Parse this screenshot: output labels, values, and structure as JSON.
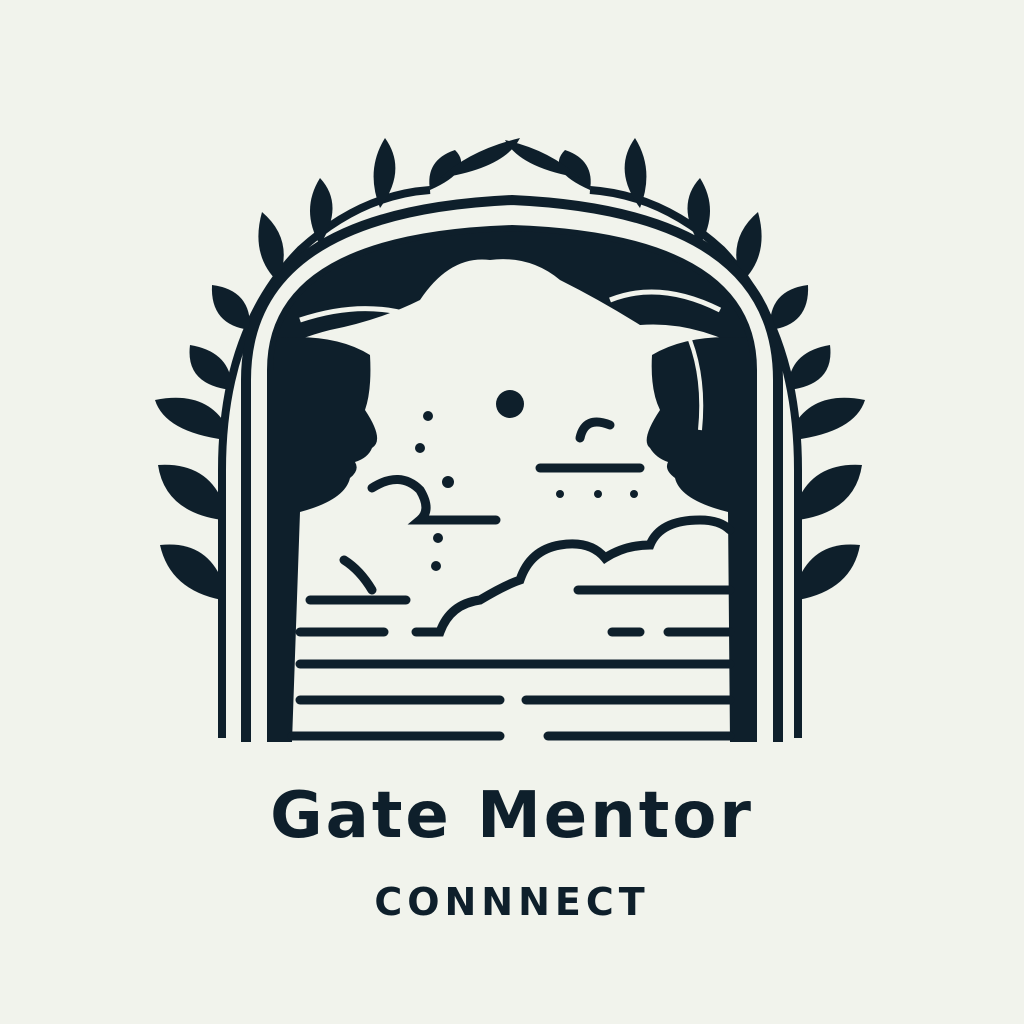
{
  "brand": {
    "name": "Gate Mentor",
    "tagline": "CONNNECT"
  },
  "colors": {
    "ink": "#0e1f2b",
    "background": "#f1f3ec"
  },
  "icons": [
    "vine-arch-icon",
    "leaf-branch-icon",
    "face-profile-icon",
    "sun-icon",
    "cloud-icon",
    "water-waves-icon"
  ]
}
